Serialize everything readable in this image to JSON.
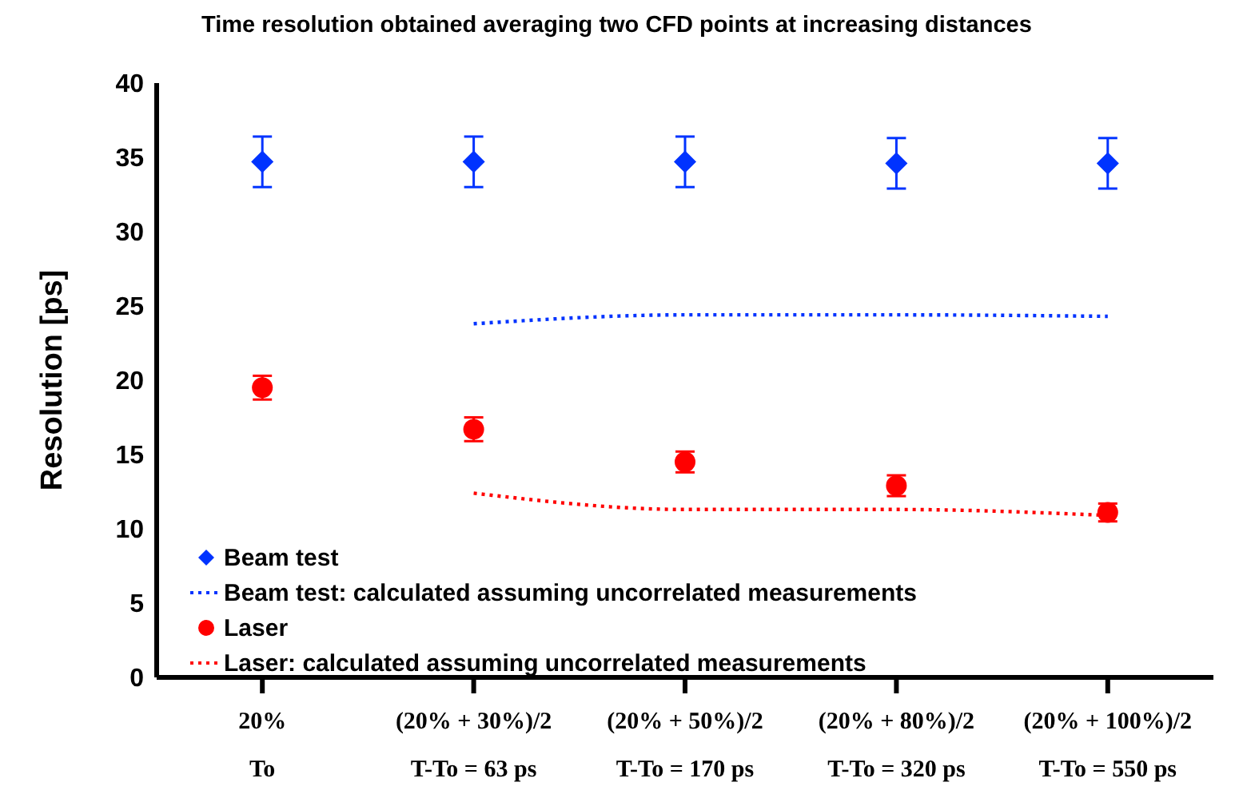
{
  "chart_data": {
    "type": "scatter",
    "title": "Time resolution obtained averaging two CFD points at increasing distances",
    "ylabel": "Resolution [ps]",
    "categories": [
      "20%\nTo",
      "(20% + 30%)/2\nT-To = 63 ps",
      "(20% + 50%)/2\nT-To = 170 ps",
      "(20% + 80%)/2\nT-To = 320 ps",
      "(20% + 100%)/2\nT-To = 550  ps"
    ],
    "ylim": [
      0,
      40
    ],
    "yticks": [
      0,
      5,
      10,
      15,
      20,
      25,
      30,
      35,
      40
    ],
    "grid": false,
    "legend": "bottom left",
    "series": [
      {
        "name": "Beam test",
        "marker": "diamond",
        "color": "#0033ff",
        "values": [
          34.7,
          34.7,
          34.7,
          34.6,
          34.6
        ],
        "errors": [
          1.7,
          1.7,
          1.7,
          1.7,
          1.7
        ]
      },
      {
        "name": "Beam test: calculated assuming uncorrelated measurements",
        "type": "line",
        "line_style": "dotted",
        "marker": "none",
        "color": "#0033ff",
        "values": [
          null,
          23.8,
          24.4,
          24.4,
          24.3
        ]
      },
      {
        "name": "Laser",
        "marker": "circle",
        "color": "#ff0000",
        "values": [
          19.5,
          16.7,
          14.5,
          12.9,
          11.1
        ],
        "errors": [
          0.8,
          0.8,
          0.7,
          0.7,
          0.6
        ]
      },
      {
        "name": "Laser: calculated assuming uncorrelated measurements",
        "type": "line",
        "line_style": "dotted",
        "marker": "none",
        "color": "#ff0000",
        "values": [
          null,
          12.4,
          11.3,
          11.3,
          10.9
        ]
      }
    ]
  }
}
